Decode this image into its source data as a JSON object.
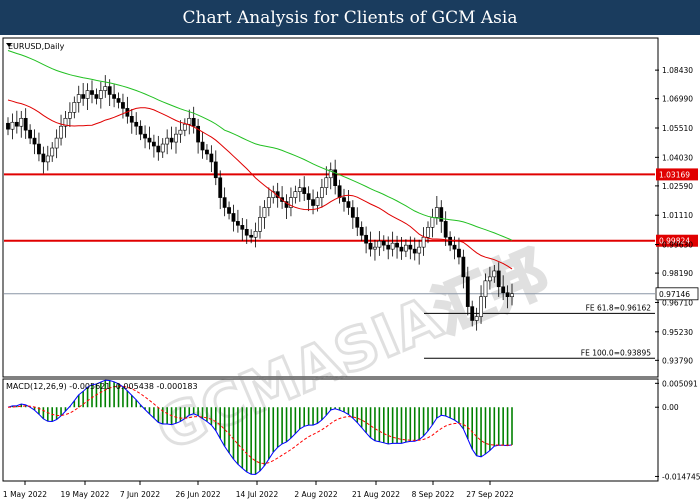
{
  "page_title": "Chart Analysis for Clients of GCM Asia",
  "chart_data": {
    "type": "candlestick",
    "symbol_label": "EURUSD,Daily",
    "price_axis": {
      "ylim": [
        0.93,
        1.1
      ],
      "ticks": [
        "1.08430",
        "1.06990",
        "1.05510",
        "1.04030",
        "1.02590",
        "1.01110",
        "0.99630",
        "0.98190",
        "0.96710",
        "0.95230",
        "0.93790"
      ]
    },
    "resistance_levels": [
      {
        "label": "1.03169",
        "value": 1.03169,
        "color": "#e00000"
      },
      {
        "label": "0.99824",
        "value": 0.99824,
        "color": "#e00000"
      }
    ],
    "current_price": {
      "label": "0.97146",
      "value": 0.97146
    },
    "fibonacci_levels": [
      {
        "label": "FE 61.8=0.96162",
        "value": 0.96162
      },
      {
        "label": "FE 100.0=0.93895",
        "value": 0.93895
      }
    ],
    "moving_averages": [
      {
        "color": "#e00000"
      },
      {
        "color": "#22c022"
      }
    ],
    "x_ticks": [
      "1 May 2022",
      "19 May 2022",
      "7 Jun 2022",
      "26 Jun 2022",
      "14 Jul 2022",
      "2 Aug 2022",
      "21 Aug 2022",
      "8 Sep 2022",
      "27 Sep 2022"
    ],
    "macd": {
      "header": "MACD(12,26,9) -0.005621 -0.005438 -0.000183",
      "ticks": [
        "0.005091",
        "0.00",
        "-0.014745"
      ],
      "ylim": [
        -0.0155,
        0.0058
      ],
      "colors": {
        "histogram": "#008000",
        "macd": "#0000ff",
        "signal": "#ff0000"
      }
    },
    "closes": [
      1.0545,
      1.058,
      1.056,
      1.06,
      1.054,
      1.05,
      1.047,
      1.042,
      1.038,
      1.041,
      1.045,
      1.05,
      1.056,
      1.06,
      1.063,
      1.068,
      1.072,
      1.07,
      1.074,
      1.072,
      1.07,
      1.074,
      1.076,
      1.072,
      1.07,
      1.068,
      1.065,
      1.061,
      1.058,
      1.056,
      1.052,
      1.05,
      1.048,
      1.046,
      1.043,
      1.047,
      1.05,
      1.048,
      1.052,
      1.054,
      1.057,
      1.06,
      1.056,
      1.048,
      1.044,
      1.042,
      1.038,
      1.03,
      1.02,
      1.015,
      1.012,
      1.008,
      1.006,
      1.004,
      1.001,
      1.0,
      1.003,
      1.01,
      1.015,
      1.02,
      1.023,
      1.02,
      1.018,
      1.015,
      1.02,
      1.023,
      1.025,
      1.022,
      1.019,
      1.016,
      1.02,
      1.025,
      1.03,
      1.034,
      1.026,
      1.02,
      1.018,
      1.015,
      1.01,
      1.005,
      1.001,
      0.997,
      0.994,
      0.995,
      0.998,
      0.996,
      0.994,
      0.997,
      0.995,
      0.993,
      0.996,
      0.994,
      0.992,
      0.995,
      1.0,
      1.005,
      1.01,
      1.015,
      1.008,
      1.0,
      0.996,
      0.994,
      0.99,
      0.98,
      0.965,
      0.958,
      0.96,
      0.97,
      0.978,
      0.98,
      0.983,
      0.975,
      0.972,
      0.97,
      0.9715
    ]
  }
}
